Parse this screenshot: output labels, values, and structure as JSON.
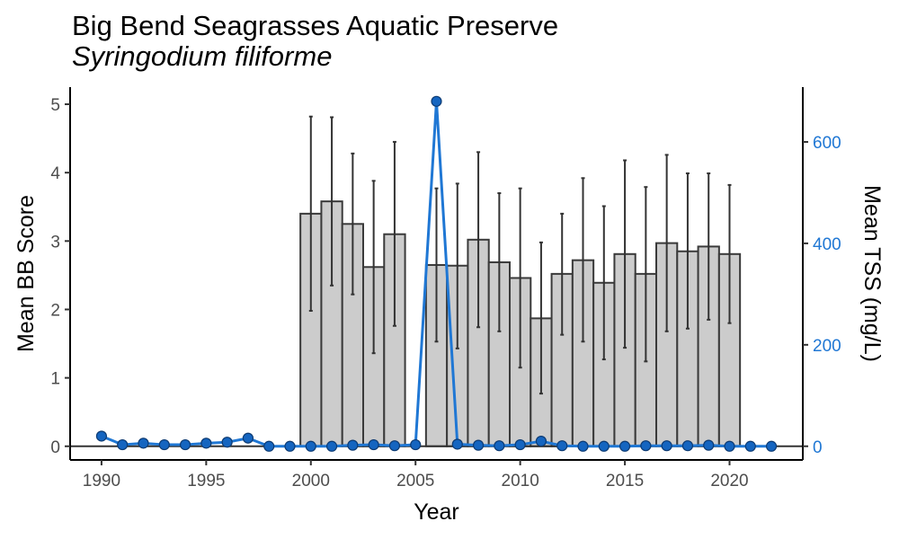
{
  "title": "Big Bend Seagrasses Aquatic Preserve",
  "subtitle": "Syringodium filiforme",
  "colors": {
    "bar_fill": "#cccccc",
    "bar_stroke": "#3a3a3a",
    "line": "#1f77d4",
    "point": "#1565c0",
    "error_bar": "#333333"
  },
  "chart_data": {
    "type": "bar",
    "xlabel": "Year",
    "ylabel": "Mean BB Score",
    "y2label": "Mean TSS (mg/L)",
    "xlim": [
      1988.5,
      2023.5
    ],
    "ylim": [
      -0.2,
      5.25
    ],
    "y2lim": [
      -27,
      708
    ],
    "x_ticks": [
      1990,
      1995,
      2000,
      2005,
      2010,
      2015,
      2020
    ],
    "y_ticks": [
      0,
      1,
      2,
      3,
      4,
      5
    ],
    "y2_ticks": [
      0,
      200,
      400,
      600
    ],
    "bars": [
      {
        "year": 2000,
        "value": 3.4,
        "err_low": 1.98,
        "err_high": 4.82
      },
      {
        "year": 2001,
        "value": 3.58,
        "err_low": 2.35,
        "err_high": 4.81
      },
      {
        "year": 2002,
        "value": 3.25,
        "err_low": 2.22,
        "err_high": 4.28
      },
      {
        "year": 2003,
        "value": 2.62,
        "err_low": 1.36,
        "err_high": 3.88
      },
      {
        "year": 2004,
        "value": 3.1,
        "err_low": 1.76,
        "err_high": 4.45
      },
      {
        "year": 2006,
        "value": 2.65,
        "err_low": 1.53,
        "err_high": 3.77
      },
      {
        "year": 2007,
        "value": 2.64,
        "err_low": 1.43,
        "err_high": 3.84
      },
      {
        "year": 2008,
        "value": 3.02,
        "err_low": 1.74,
        "err_high": 4.3
      },
      {
        "year": 2009,
        "value": 2.69,
        "err_low": 1.68,
        "err_high": 3.7
      },
      {
        "year": 2010,
        "value": 2.46,
        "err_low": 1.15,
        "err_high": 3.77
      },
      {
        "year": 2011,
        "value": 1.87,
        "err_low": 0.77,
        "err_high": 2.98
      },
      {
        "year": 2012,
        "value": 2.52,
        "err_low": 1.63,
        "err_high": 3.4
      },
      {
        "year": 2013,
        "value": 2.72,
        "err_low": 1.53,
        "err_high": 3.92
      },
      {
        "year": 2014,
        "value": 2.39,
        "err_low": 1.27,
        "err_high": 3.51
      },
      {
        "year": 2015,
        "value": 2.81,
        "err_low": 1.44,
        "err_high": 4.18
      },
      {
        "year": 2016,
        "value": 2.52,
        "err_low": 1.24,
        "err_high": 3.79
      },
      {
        "year": 2017,
        "value": 2.97,
        "err_low": 1.68,
        "err_high": 4.26
      },
      {
        "year": 2018,
        "value": 2.85,
        "err_low": 1.72,
        "err_high": 3.99
      },
      {
        "year": 2019,
        "value": 2.92,
        "err_low": 1.85,
        "err_high": 3.99
      },
      {
        "year": 2020,
        "value": 2.81,
        "err_low": 1.8,
        "err_high": 3.82
      }
    ],
    "tss": [
      {
        "year": 1990,
        "value": 20
      },
      {
        "year": 1991,
        "value": 3
      },
      {
        "year": 1992,
        "value": 6
      },
      {
        "year": 1993,
        "value": 3
      },
      {
        "year": 1994,
        "value": 3
      },
      {
        "year": 1995,
        "value": 6
      },
      {
        "year": 1996,
        "value": 8
      },
      {
        "year": 1997,
        "value": 16
      },
      {
        "year": 1998,
        "value": 0
      },
      {
        "year": 1999,
        "value": 0
      },
      {
        "year": 2000,
        "value": 0
      },
      {
        "year": 2001,
        "value": 0
      },
      {
        "year": 2002,
        "value": 2
      },
      {
        "year": 2003,
        "value": 3
      },
      {
        "year": 2004,
        "value": 1
      },
      {
        "year": 2005,
        "value": 3
      },
      {
        "year": 2006,
        "value": 680
      },
      {
        "year": 2007,
        "value": 4
      },
      {
        "year": 2008,
        "value": 2
      },
      {
        "year": 2009,
        "value": 1
      },
      {
        "year": 2010,
        "value": 3
      },
      {
        "year": 2011,
        "value": 10
      },
      {
        "year": 2012,
        "value": 1
      },
      {
        "year": 2013,
        "value": 0
      },
      {
        "year": 2014,
        "value": 0
      },
      {
        "year": 2015,
        "value": 0
      },
      {
        "year": 2016,
        "value": 1
      },
      {
        "year": 2017,
        "value": 1
      },
      {
        "year": 2018,
        "value": 1
      },
      {
        "year": 2019,
        "value": 2
      },
      {
        "year": 2020,
        "value": 0
      },
      {
        "year": 2021,
        "value": 0
      },
      {
        "year": 2022,
        "value": 0
      }
    ]
  }
}
